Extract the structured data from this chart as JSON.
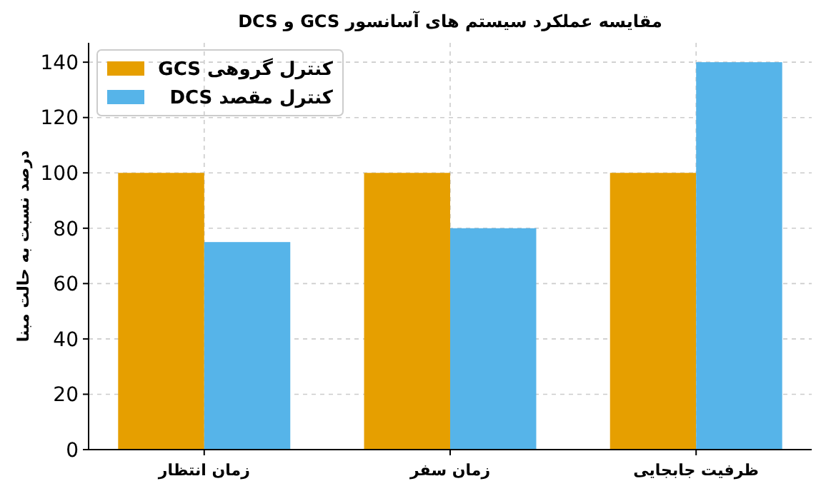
{
  "chart_data": {
    "type": "bar",
    "title": "مقایسه عملکرد سیستم های آسانسور GCS و DCS",
    "ylabel": "درصد نسبت به حالت مبنا",
    "categories": [
      "زمان انتظار",
      "زمان سفر",
      "ظرفیت جابجایی"
    ],
    "series": [
      {
        "name": "کنترل گروهی GCS",
        "color": "#e69f00",
        "values": [
          100,
          100,
          100
        ]
      },
      {
        "name": "کنترل مقصد DCS",
        "color": "#56b4e9",
        "values": [
          75,
          80,
          140
        ]
      }
    ],
    "ylim": [
      0,
      147
    ],
    "yticks": [
      0,
      20,
      40,
      60,
      80,
      100,
      120,
      140
    ],
    "grid": true,
    "legend": "top left"
  }
}
